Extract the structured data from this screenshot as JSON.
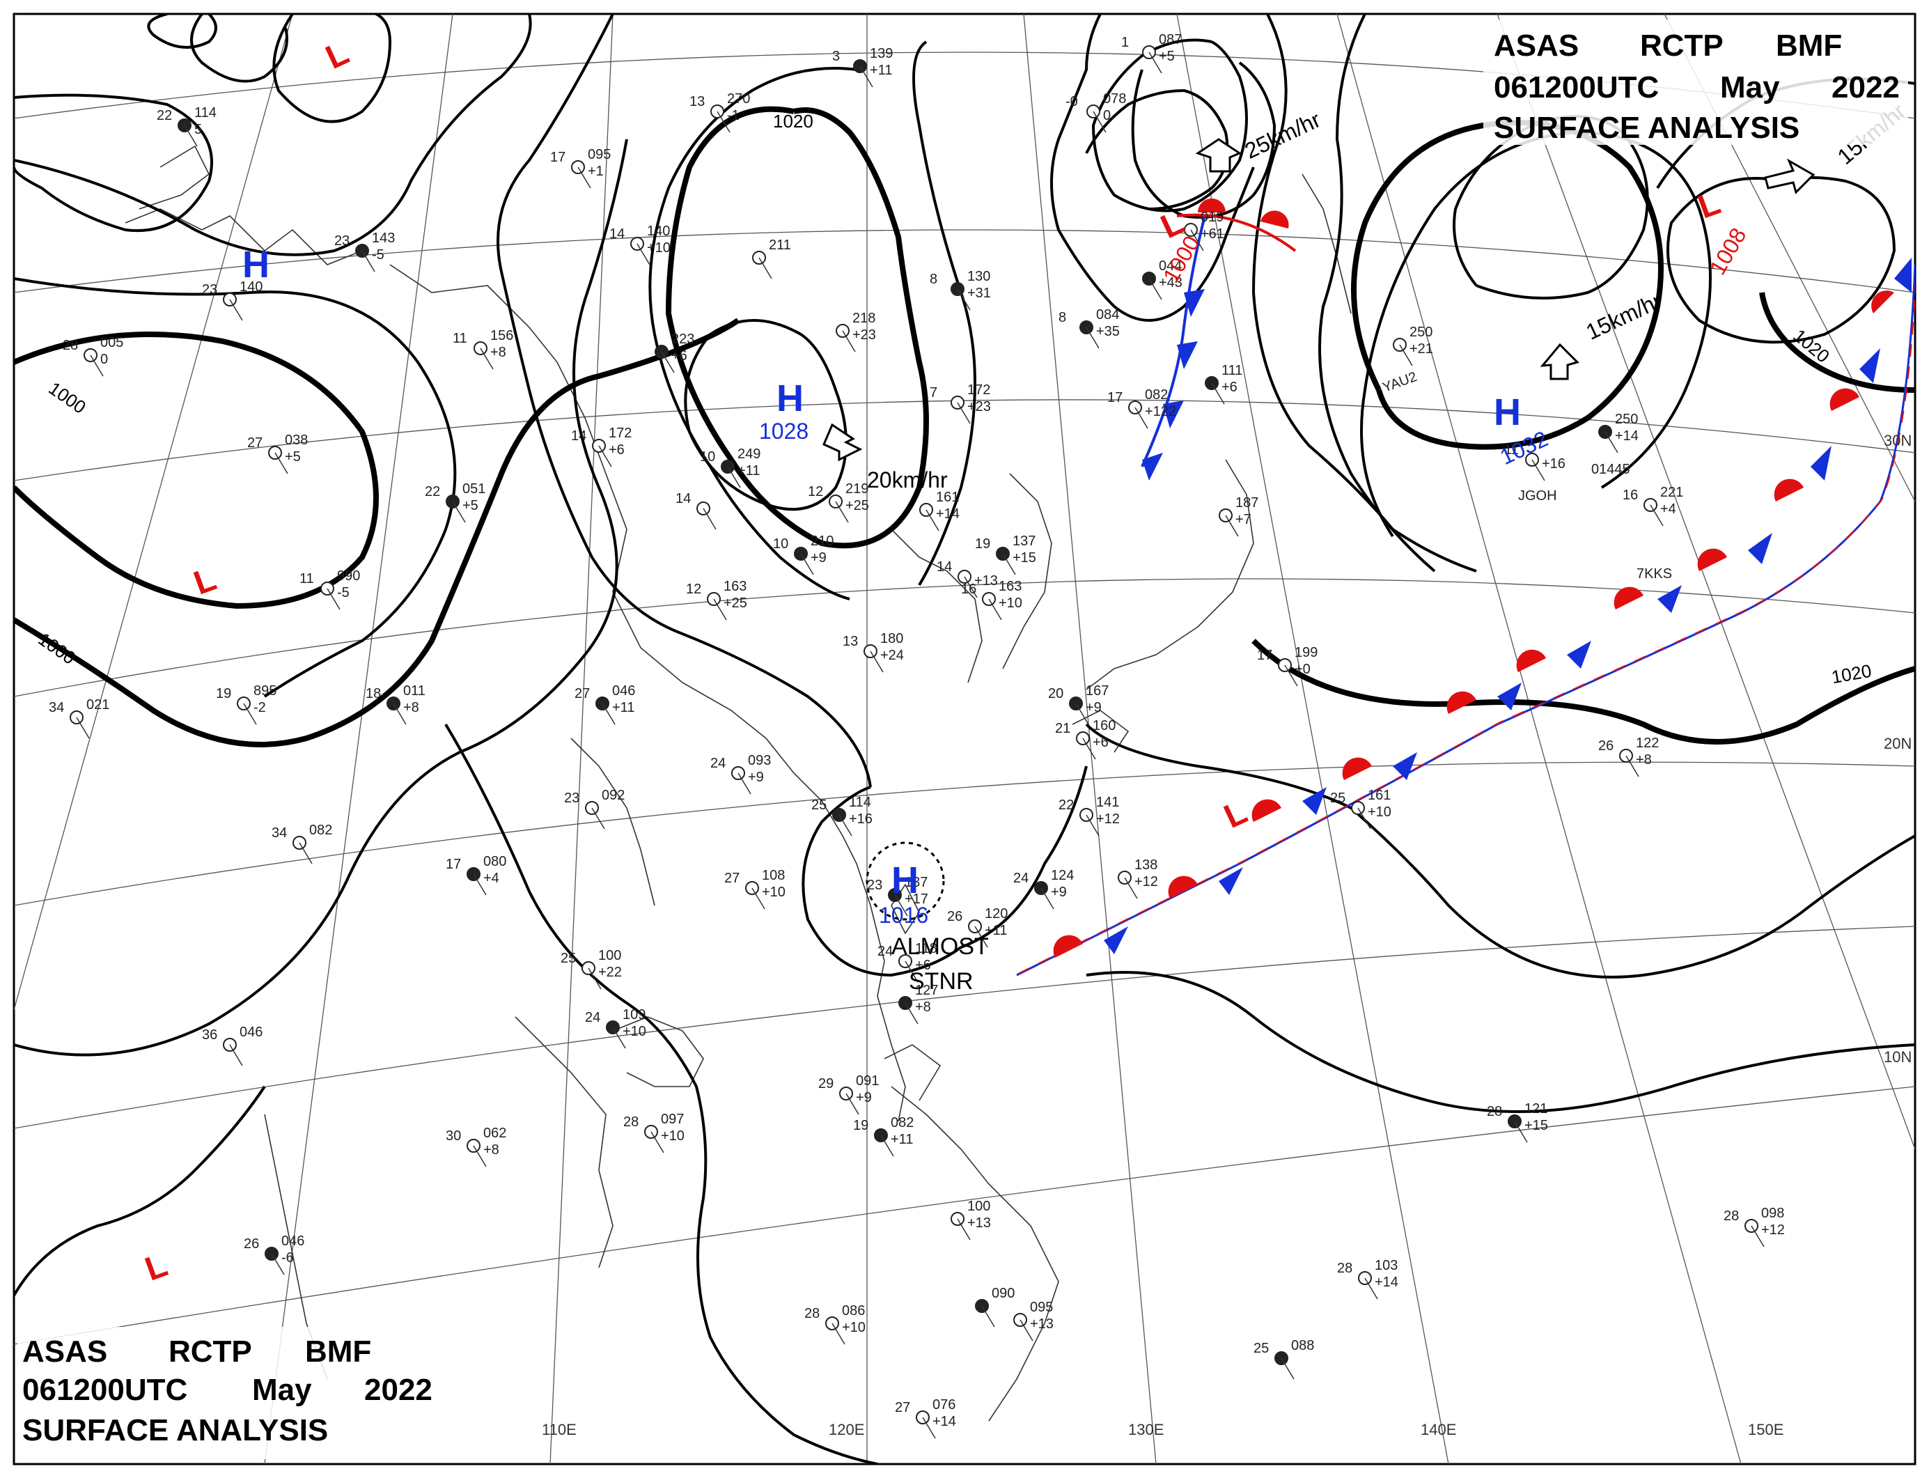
{
  "header_top": {
    "line1": [
      "ASAS",
      "RCTP",
      "BMF"
    ],
    "line2": [
      "061200UTC",
      "May",
      "2022"
    ],
    "line3": "SURFACE ANALYSIS"
  },
  "header_bottom": {
    "line1": [
      "ASAS",
      "RCTP",
      "BMF"
    ],
    "line2": [
      "061200UTC",
      "May",
      "2022"
    ],
    "line3": "SURFACE ANALYSIS"
  },
  "lon_labels": [
    "110E",
    "120E",
    "130E",
    "140E",
    "150E"
  ],
  "lat_labels": [
    "30N",
    "20N",
    "10N"
  ],
  "isobar_labels": [
    "1020",
    "1000",
    "1000",
    "1020",
    "1020"
  ],
  "pressure_systems": [
    {
      "type": "H",
      "value": "1028"
    },
    {
      "type": "H",
      "value": "1032"
    },
    {
      "type": "H",
      "value": "1016"
    },
    {
      "type": "H",
      "value": ""
    },
    {
      "type": "L",
      "value": "1000"
    },
    {
      "type": "L",
      "value": "1008"
    },
    {
      "type": "L",
      "value": ""
    },
    {
      "type": "L",
      "value": ""
    },
    {
      "type": "L",
      "value": ""
    },
    {
      "type": "L",
      "value": ""
    }
  ],
  "movement_labels": [
    "20km/hr",
    "25km/hr",
    "15km/hr",
    "15km/hr"
  ],
  "almost_stationary": [
    "ALMOST",
    "STNR"
  ],
  "station_plots": [
    {
      "t": "22",
      "p": "114",
      "x": "5"
    },
    {
      "t": "23",
      "p": "140",
      "x": ""
    },
    {
      "t": "28",
      "p": "005",
      "x": "0"
    },
    {
      "t": "23",
      "p": "143",
      "x": "-5"
    },
    {
      "t": "11",
      "p": "156",
      "x": "+8"
    },
    {
      "t": "27",
      "p": "038",
      "x": "+5"
    },
    {
      "t": "22",
      "p": "051",
      "x": "+5"
    },
    {
      "t": "11",
      "p": "990",
      "x": "-5"
    },
    {
      "t": "19",
      "p": "895",
      "x": "-2"
    },
    {
      "t": "18",
      "p": "011",
      "x": "+8"
    },
    {
      "t": "34",
      "p": "021",
      "x": ""
    },
    {
      "t": "34",
      "p": "082",
      "x": ""
    },
    {
      "t": "17",
      "p": "080",
      "x": "+4"
    },
    {
      "t": "36",
      "p": "046",
      "x": ""
    },
    {
      "t": "30",
      "p": "062",
      "x": "+8"
    },
    {
      "t": "26",
      "p": "046",
      "x": "-6"
    },
    {
      "t": "17",
      "p": "095",
      "x": "+1"
    },
    {
      "t": "13",
      "p": "270",
      "x": "-1"
    },
    {
      "t": "3",
      "p": "139",
      "x": "+11"
    },
    {
      "t": "14",
      "p": "140",
      "x": "+10"
    },
    {
      "t": "",
      "p": "211",
      "x": ""
    },
    {
      "t": "",
      "p": "223",
      "x": "+6"
    },
    {
      "t": "",
      "p": "218",
      "x": "+23"
    },
    {
      "t": "14",
      "p": "172",
      "x": "+6"
    },
    {
      "t": "10",
      "p": "249",
      "x": "+11"
    },
    {
      "t": "12",
      "p": "219",
      "x": "+25"
    },
    {
      "t": "14",
      "p": "",
      "x": ""
    },
    {
      "t": "10",
      "p": "210",
      "x": "+9"
    },
    {
      "t": "12",
      "p": "163",
      "x": "+25"
    },
    {
      "t": "13",
      "p": "180",
      "x": "+24"
    },
    {
      "t": "27",
      "p": "046",
      "x": "+11"
    },
    {
      "t": "24",
      "p": "093",
      "x": "+9"
    },
    {
      "t": "23",
      "p": "092",
      "x": ""
    },
    {
      "t": "25",
      "p": "114",
      "x": "+16"
    },
    {
      "t": "27",
      "p": "108",
      "x": "+10"
    },
    {
      "t": "25",
      "p": "100",
      "x": "+22"
    },
    {
      "t": "24",
      "p": "109",
      "x": "+10"
    },
    {
      "t": "28",
      "p": "097",
      "x": "+10"
    },
    {
      "t": "29",
      "p": "091",
      "x": "+9"
    },
    {
      "t": "19",
      "p": "082",
      "x": "+11"
    },
    {
      "t": "",
      "p": "100",
      "x": "+13"
    },
    {
      "t": "28",
      "p": "086",
      "x": "+10"
    },
    {
      "t": "",
      "p": "090",
      "x": ""
    },
    {
      "t": "",
      "p": "095",
      "x": "+13"
    },
    {
      "t": "27",
      "p": "076",
      "x": "+14"
    },
    {
      "t": "25",
      "p": "088",
      "x": ""
    },
    {
      "t": "28",
      "p": "103",
      "x": "+14"
    },
    {
      "t": "28",
      "p": "098",
      "x": "+12"
    },
    {
      "t": "28",
      "p": "121",
      "x": "+15"
    },
    {
      "t": "26",
      "p": "122",
      "x": "+8"
    },
    {
      "t": "16",
      "p": "221",
      "x": "+4"
    },
    {
      "t": "",
      "p": "250",
      "x": "+14"
    },
    {
      "t": "",
      "p": "250",
      "x": "+21"
    },
    {
      "t": "11",
      "p": "",
      "x": "+16"
    },
    {
      "t": "8",
      "p": "130",
      "x": "+31"
    },
    {
      "t": "7",
      "p": "172",
      "x": "+23"
    },
    {
      "t": "",
      "p": "161",
      "x": "+14"
    },
    {
      "t": "19",
      "p": "137",
      "x": "+15"
    },
    {
      "t": "14",
      "p": "",
      "x": "+13"
    },
    {
      "t": "16",
      "p": "163",
      "x": "+10"
    },
    {
      "t": "8",
      "p": "084",
      "x": "+35"
    },
    {
      "t": "-0",
      "p": "078",
      "x": "0"
    },
    {
      "t": "1",
      "p": "087",
      "x": "+5"
    },
    {
      "t": "",
      "p": "044",
      "x": "+43"
    },
    {
      "t": "",
      "p": "019",
      "x": "+61"
    },
    {
      "t": "17",
      "p": "082",
      "x": "+122"
    },
    {
      "t": "",
      "p": "111",
      "x": "+6"
    },
    {
      "t": "",
      "p": "187",
      "x": "+7"
    },
    {
      "t": "17",
      "p": "199",
      "x": "+0"
    },
    {
      "t": "20",
      "p": "167",
      "x": "+9"
    },
    {
      "t": "21",
      "p": "160",
      "x": "+6"
    },
    {
      "t": "22",
      "p": "141",
      "x": "+12"
    },
    {
      "t": "24",
      "p": "124",
      "x": "+9"
    },
    {
      "t": "",
      "p": "138",
      "x": "+12"
    },
    {
      "t": "25",
      "p": "161",
      "x": "+10"
    },
    {
      "t": "23",
      "p": "137",
      "x": "+17"
    },
    {
      "t": "24",
      "p": "118",
      "x": "+6"
    },
    {
      "t": "26",
      "p": "120",
      "x": "+11"
    },
    {
      "t": "",
      "p": "127",
      "x": "+8"
    }
  ],
  "station_ids": [
    "YAU2",
    "JGOH",
    "7KKS",
    "01445"
  ]
}
